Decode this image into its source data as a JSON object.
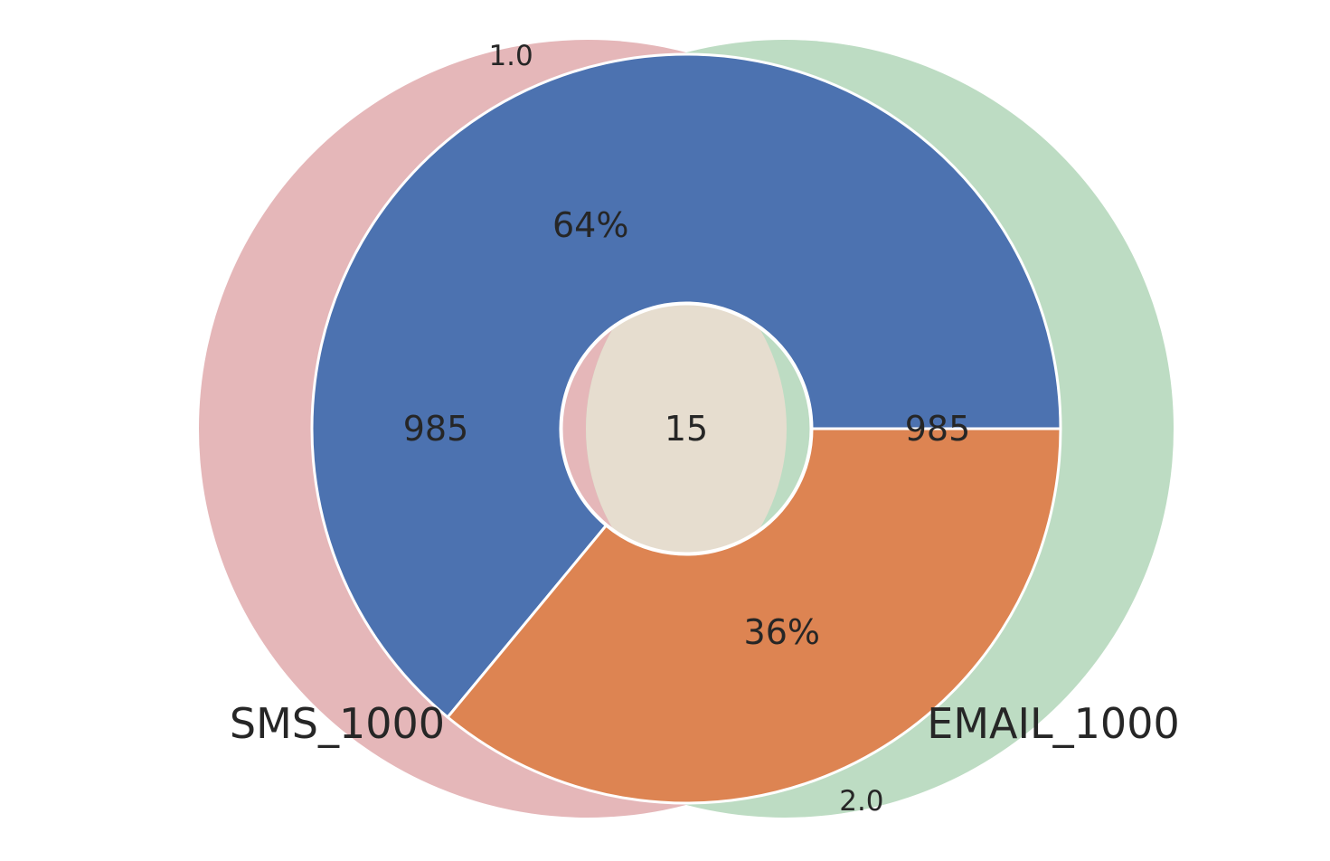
{
  "chart_data": [
    {
      "type": "venn",
      "sets": [
        {
          "name": "SMS_1000",
          "only": 985,
          "color": "#e5b7b9"
        },
        {
          "name": "EMAIL_1000",
          "only": 985,
          "color": "#bddcc3"
        }
      ],
      "intersection": {
        "value": 15,
        "color": "#e6ddcf"
      },
      "labels": {
        "set_a": "SMS_1000",
        "set_b": "EMAIL_1000",
        "only_a": "985",
        "only_b": "985",
        "both": "15"
      }
    },
    {
      "type": "pie",
      "style": "donut",
      "categories": [
        "1.0",
        "2.0"
      ],
      "values": [
        64,
        36
      ],
      "value_labels": [
        "64%",
        "36%"
      ],
      "colors": [
        "#4c72b0",
        "#dd8452"
      ],
      "startangle": 0,
      "direction": "counterclockwise",
      "edgecolor": "#ffffff"
    }
  ]
}
